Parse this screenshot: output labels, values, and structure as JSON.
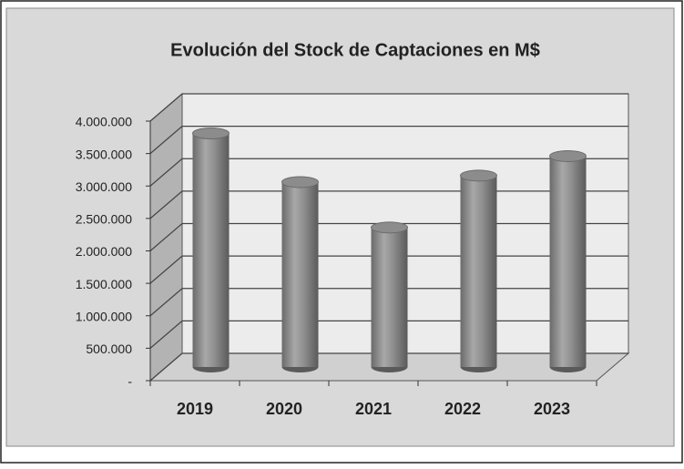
{
  "chart_data": {
    "type": "bar3d",
    "title": "Evolución del Stock de Captaciones en M$",
    "categories": [
      "2019",
      "2020",
      "2021",
      "2022",
      "2023"
    ],
    "values": [
      3600000,
      2850000,
      2150000,
      2950000,
      3250000
    ],
    "color": "#8c8c8c",
    "ylim": [
      0,
      4000000
    ],
    "yticks": [
      {
        "value": 0,
        "label": "-"
      },
      {
        "value": 500000,
        "label": "500.000"
      },
      {
        "value": 1000000,
        "label": "1.000.000"
      },
      {
        "value": 1500000,
        "label": "1.500.000"
      },
      {
        "value": 2000000,
        "label": "2.000.000"
      },
      {
        "value": 2500000,
        "label": "2.500.000"
      },
      {
        "value": 3000000,
        "label": "3.000.000"
      },
      {
        "value": 3500000,
        "label": "3.500.000"
      },
      {
        "value": 4000000,
        "label": "4.000.000"
      }
    ],
    "grid": true
  }
}
